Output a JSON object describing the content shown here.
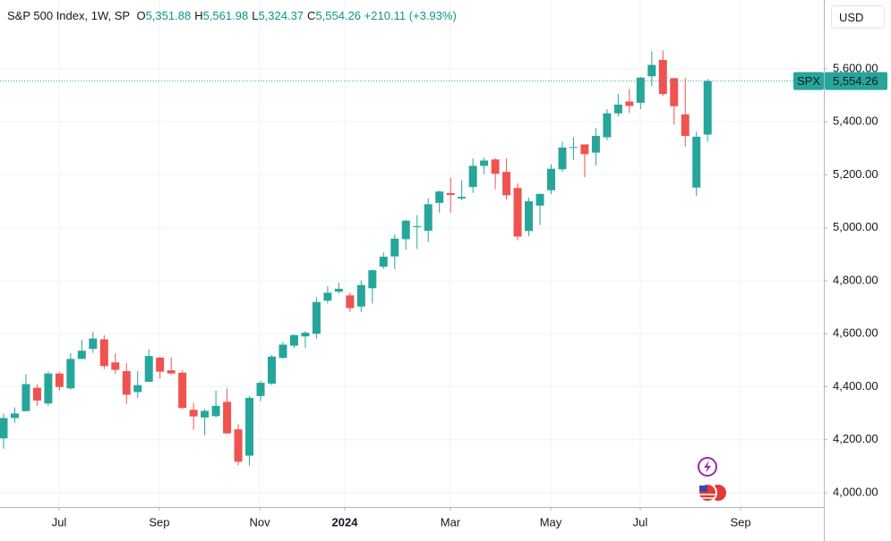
{
  "chart_data": {
    "type": "candlestick",
    "title": "S&P 500 Index, 1W, SP",
    "legend": [
      {
        "key": "O",
        "text": "5,351.88"
      },
      {
        "key": "H",
        "text": "5,561.98"
      },
      {
        "key": "L",
        "text": "5,324.37"
      },
      {
        "key": "C",
        "text": "5,554.26"
      }
    ],
    "change": "+210.11 (+3.93%)",
    "currency": "USD",
    "symbol": "SPX",
    "last_price": {
      "value": 5554.26,
      "label": "5,554.26"
    },
    "up_color": "#26a69a",
    "down_color": "#ef5350",
    "open": [
      4205,
      4282,
      4308,
      4396,
      4337,
      4450,
      4394,
      4505,
      4543,
      4579,
      4492,
      4459,
      4380,
      4419,
      4510,
      4462,
      4453,
      4313,
      4284,
      4289,
      4343,
      4239,
      4140,
      4365,
      4412,
      4509,
      4555,
      4590,
      4600,
      4725,
      4759,
      4745,
      4703,
      4772,
      4853,
      4892,
      4957,
      5004,
      4989,
      5094,
      5131,
      5111,
      5154,
      5234,
      5258,
      5211,
      5150,
      4988,
      5084,
      5142,
      5221,
      5305,
      5315,
      5284,
      5342,
      5432,
      5477,
      5472,
      5572,
      5634,
      5565,
      5428,
      5152,
      5351.88
    ],
    "high": [
      4299,
      4322,
      4448,
      4409,
      4458,
      4456,
      4527,
      4578,
      4607,
      4595,
      4527,
      4490,
      4459,
      4541,
      4514,
      4511,
      4462,
      4339,
      4317,
      4385,
      4394,
      4259,
      4366,
      4422,
      4520,
      4569,
      4597,
      4610,
      4738,
      4779,
      4793,
      4755,
      4802,
      4842,
      4907,
      4975,
      5030,
      5048,
      5111,
      5140,
      5190,
      5179,
      5262,
      5265,
      5264,
      5263,
      5168,
      5114,
      5129,
      5240,
      5325,
      5342,
      5315,
      5376,
      5448,
      5506,
      5524,
      5570,
      5666,
      5670,
      5567,
      5566,
      5362,
      5561.98
    ],
    "low": [
      4166,
      4264,
      4307,
      4328,
      4328,
      4385,
      4389,
      4504,
      4528,
      4467,
      4448,
      4335,
      4357,
      4418,
      4431,
      4447,
      4316,
      4238,
      4217,
      4284,
      4223,
      4104,
      4103,
      4346,
      4407,
      4506,
      4546,
      4547,
      4582,
      4714,
      4751,
      4682,
      4682,
      4714,
      4845,
      4845,
      4918,
      4920,
      4946,
      5057,
      5057,
      5104,
      5132,
      5203,
      5146,
      5107,
      4953,
      4968,
      5011,
      5127,
      5212,
      5257,
      5191,
      5234,
      5331,
      5420,
      5434,
      5448,
      5535,
      5497,
      5390,
      5306,
      5120,
      5324.37
    ],
    "close": [
      4282,
      4299,
      4410,
      4348,
      4450,
      4399,
      4505,
      4536,
      4582,
      4478,
      4464,
      4370,
      4406,
      4516,
      4457,
      4450,
      4320,
      4288,
      4309,
      4328,
      4224,
      4117,
      4358,
      4415,
      4514,
      4559,
      4595,
      4604,
      4720,
      4755,
      4770,
      4697,
      4784,
      4840,
      4891,
      4959,
      5027,
      5006,
      5089,
      5137,
      5124,
      5117,
      5234,
      5254,
      5204,
      5123,
      4967,
      5100,
      5128,
      5223,
      5303,
      5305,
      5278,
      5347,
      5432,
      5465,
      5460,
      5567,
      5615,
      5505,
      5459,
      5347,
      5344,
      5554.26
    ],
    "xlim": [
      -0.32,
      73.4
    ],
    "xticks": [
      {
        "value": 4.97,
        "label": "Jul"
      },
      {
        "value": 13.94,
        "label": "Sep"
      },
      {
        "value": 22.92,
        "label": "Nov"
      },
      {
        "value": 30.53,
        "label": "2024"
      },
      {
        "value": 39.98,
        "label": "Mar"
      },
      {
        "value": 48.96,
        "label": "May"
      },
      {
        "value": 56.97,
        "label": "Jul"
      },
      {
        "value": 65.95,
        "label": "Sep"
      }
    ],
    "ylim": [
      3946,
      5860
    ],
    "yticks": [
      {
        "value": 4000,
        "label": "4,000.00"
      },
      {
        "value": 4200,
        "label": "4,200.00"
      },
      {
        "value": 4400,
        "label": "4,400.00"
      },
      {
        "value": 4600,
        "label": "4,600.00"
      },
      {
        "value": 4800,
        "label": "4,800.00"
      },
      {
        "value": 5000,
        "label": "5,000.00"
      },
      {
        "value": 5200,
        "label": "5,200.00"
      },
      {
        "value": 5400,
        "label": "5,400.00"
      },
      {
        "value": 5600,
        "label": "5,600.00"
      }
    ],
    "grid": true
  }
}
